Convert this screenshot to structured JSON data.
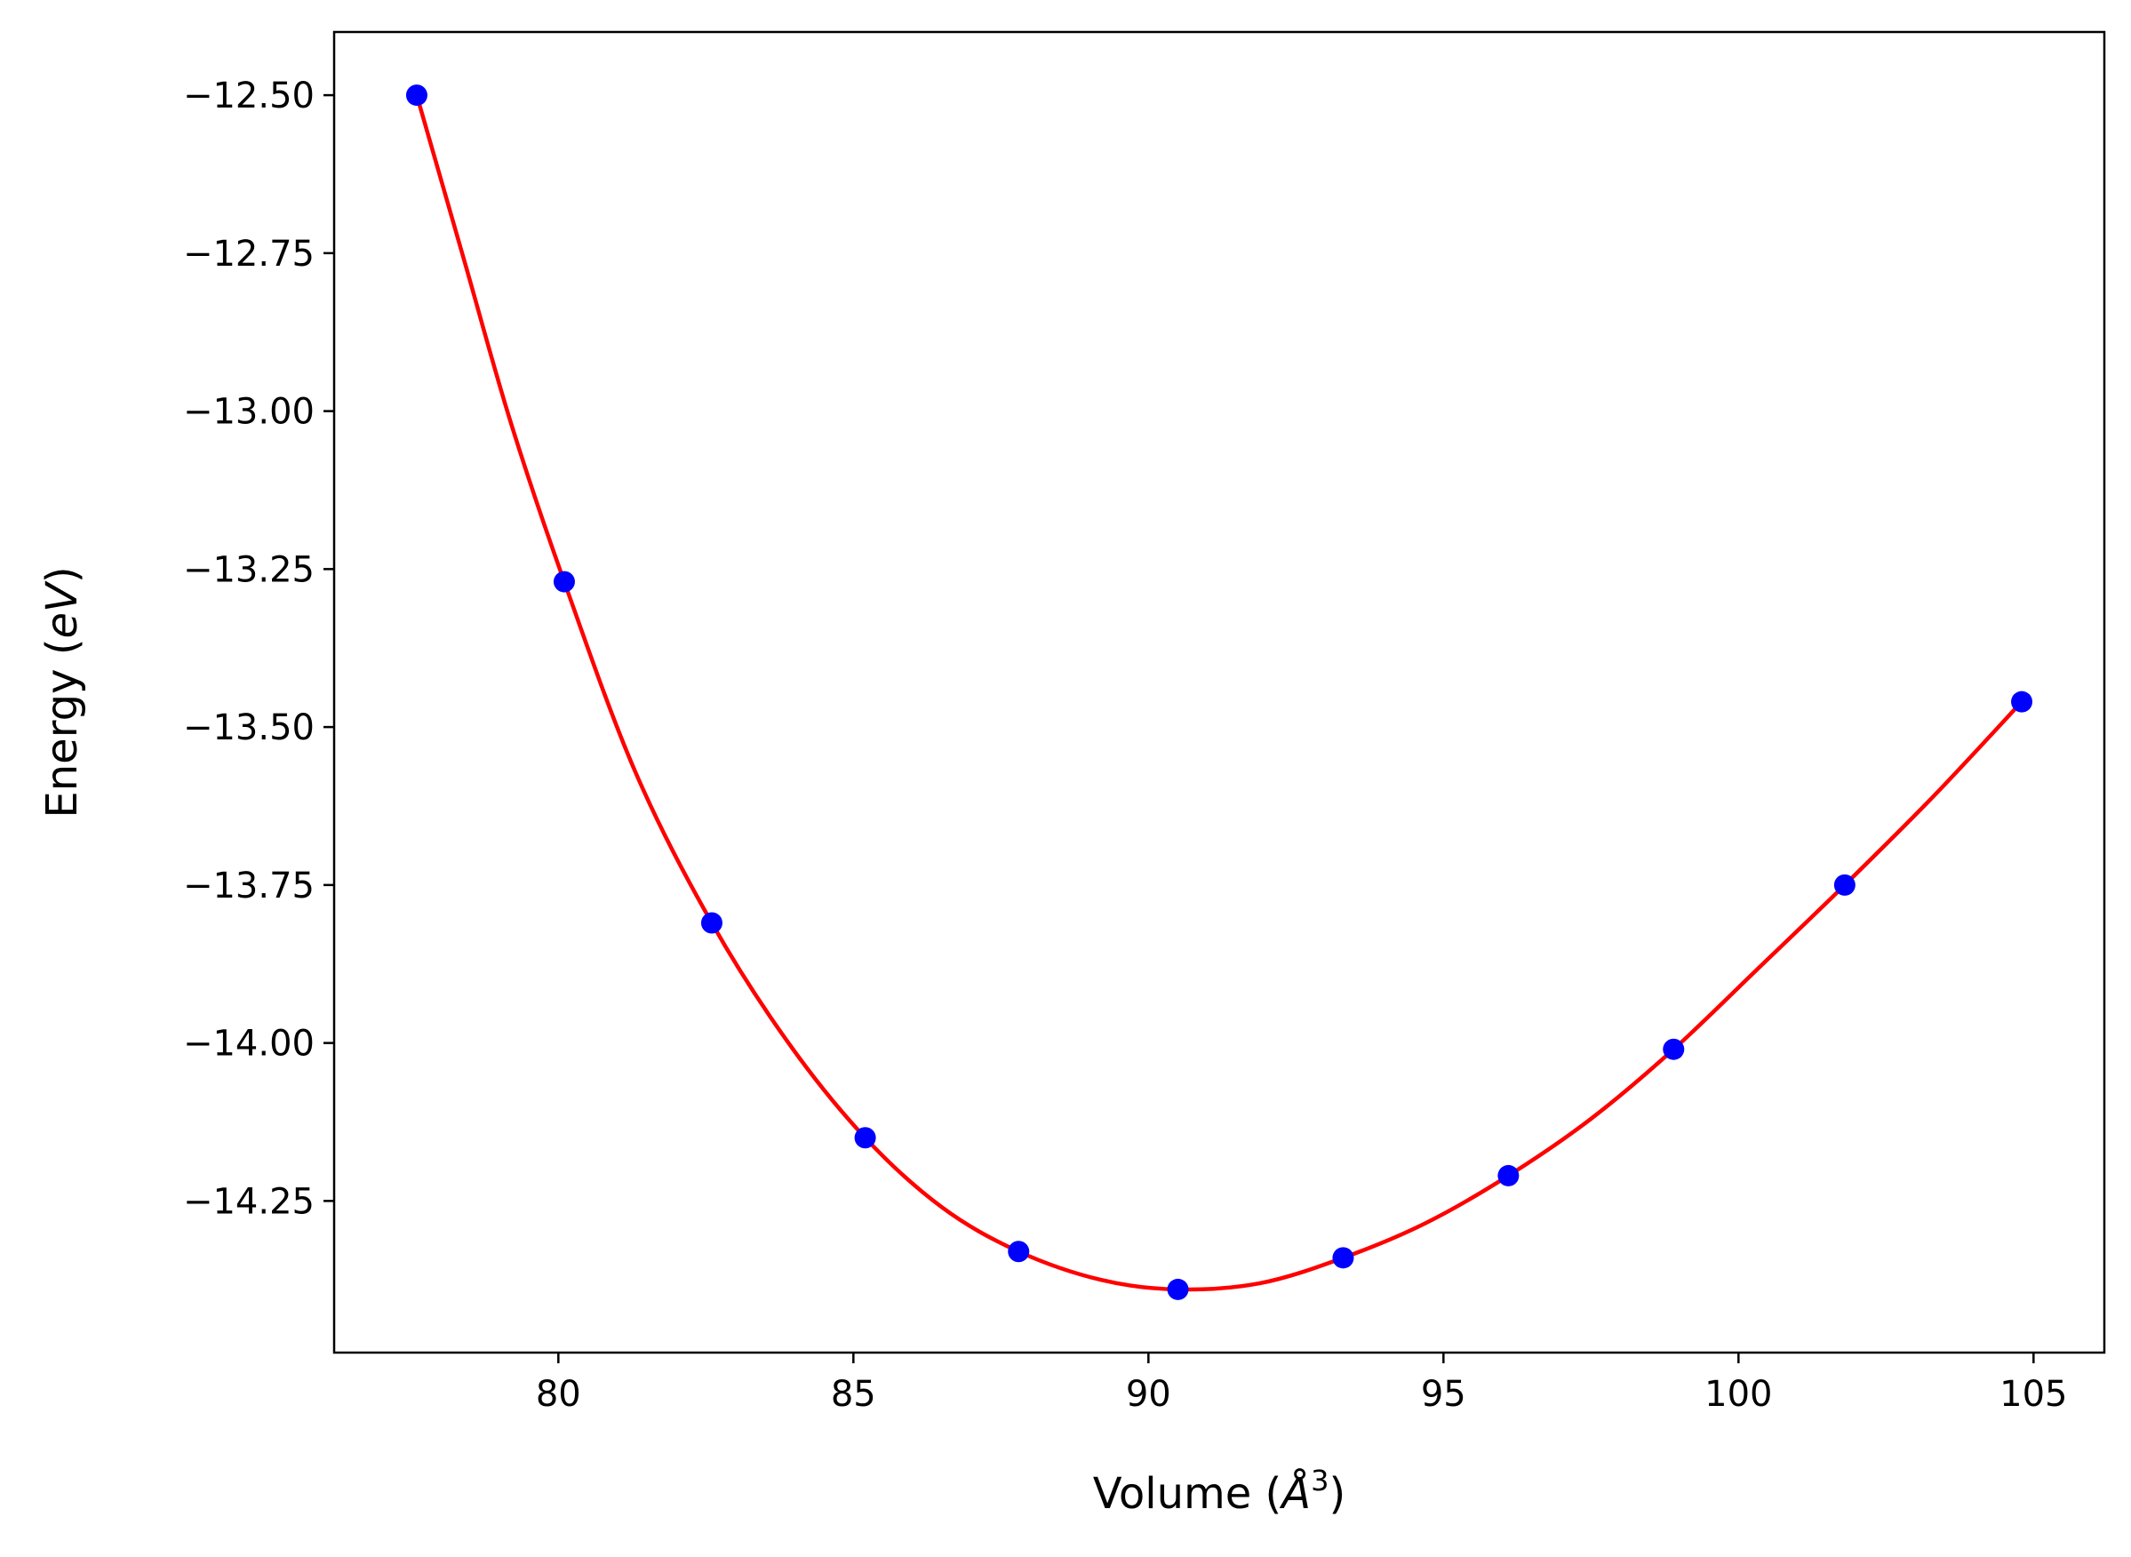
{
  "chart_data": {
    "type": "scatter",
    "title": "",
    "xlabel": "Volume (Å³)",
    "xlabel_parts": {
      "prefix": "Volume (",
      "symbol": "Å",
      "superscript": "3",
      "suffix": ")"
    },
    "ylabel": "Energy (eV)",
    "ylabel_parts": {
      "prefix": "Energy (",
      "unit": "eV",
      "suffix": ")"
    },
    "xlim": [
      76.2,
      106.2
    ],
    "ylim": [
      -14.49,
      -12.4
    ],
    "xticks": [
      80,
      85,
      90,
      95,
      100,
      105
    ],
    "xtick_labels": [
      "80",
      "85",
      "90",
      "95",
      "100",
      "105"
    ],
    "yticks": [
      -12.5,
      -12.75,
      -13.0,
      -13.25,
      -13.5,
      -13.75,
      -14.0,
      -14.25
    ],
    "ytick_labels": [
      "−12.50",
      "−12.75",
      "−13.00",
      "−13.25",
      "−13.50",
      "−13.75",
      "−14.00",
      "−14.25"
    ],
    "grid": false,
    "legend": "none",
    "series": [
      {
        "kind": "points",
        "color": "#0000ff",
        "x": [
          77.6,
          80.1,
          82.6,
          85.2,
          87.8,
          90.5,
          93.3,
          96.1,
          98.9,
          101.8,
          104.8
        ],
        "y": [
          -12.5,
          -13.27,
          -13.81,
          -14.15,
          -14.33,
          -14.39,
          -14.34,
          -14.21,
          -14.01,
          -13.75,
          -13.46
        ]
      },
      {
        "kind": "fit-curve",
        "color": "#ff0000",
        "x": [
          77.6,
          78.4,
          79.2,
          80.1,
          81.3,
          82.6,
          83.9,
          85.2,
          86.5,
          87.8,
          89.2,
          90.5,
          91.9,
          93.3,
          94.7,
          96.1,
          97.5,
          98.9,
          100.3,
          101.8,
          103.3,
          104.8
        ],
        "y": [
          -12.5,
          -12.76,
          -13.02,
          -13.27,
          -13.57,
          -13.81,
          -14.0,
          -14.15,
          -14.26,
          -14.33,
          -14.375,
          -14.39,
          -14.38,
          -14.34,
          -14.285,
          -14.21,
          -14.12,
          -14.01,
          -13.885,
          -13.75,
          -13.61,
          -13.46
        ]
      }
    ]
  }
}
